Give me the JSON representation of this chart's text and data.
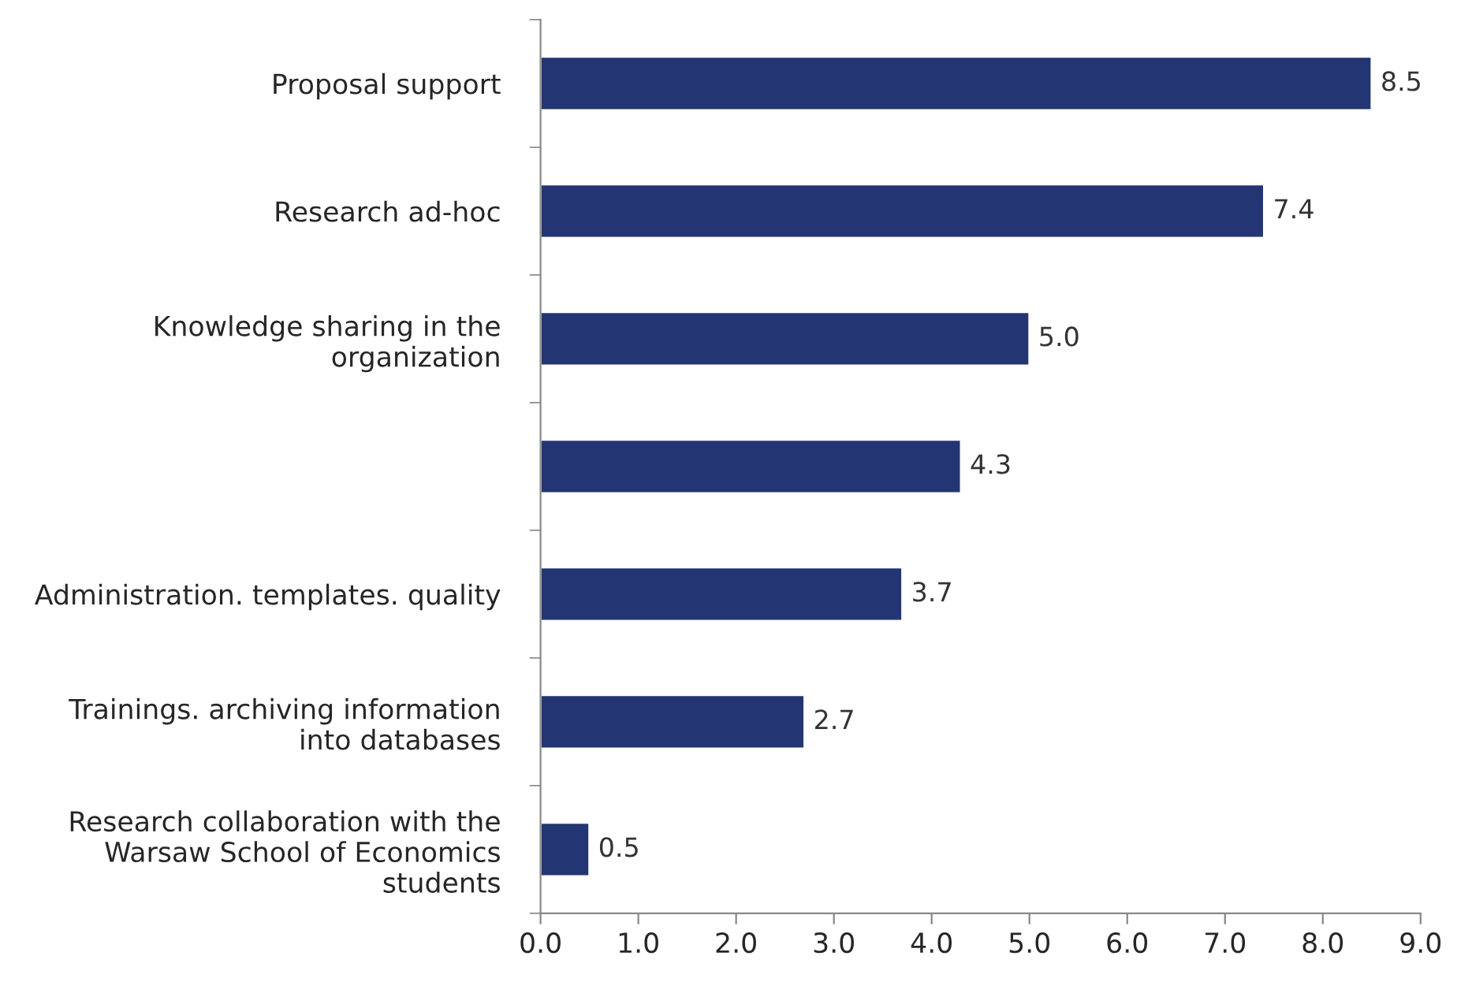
{
  "chart_data": {
    "type": "bar",
    "orientation": "horizontal",
    "categories": [
      "Proposal support",
      "Research ad-hoc",
      "Knowledge sharing in the\norganization",
      null,
      "Administration. templates. quality",
      "Trainings. archiving information\ninto databases",
      "Research collaboration with the\nWarsaw School of Economics\nstudents"
    ],
    "values": [
      8.5,
      7.4,
      5.0,
      4.3,
      3.7,
      2.7,
      0.5
    ],
    "color": "#233572",
    "xlim": [
      0,
      9
    ],
    "xticks": [
      {
        "value": 0,
        "label": "0.0"
      },
      {
        "value": 1,
        "label": "1.0"
      },
      {
        "value": 2,
        "label": "2.0"
      },
      {
        "value": 3,
        "label": "3.0"
      },
      {
        "value": 4,
        "label": "4.0"
      },
      {
        "value": 5,
        "label": "5.0"
      },
      {
        "value": 6,
        "label": "6.0"
      },
      {
        "value": 7,
        "label": "7.0"
      },
      {
        "value": 8,
        "label": "8.0"
      },
      {
        "value": 9,
        "label": "9.0"
      }
    ],
    "value_labels": [
      "8.5",
      "7.4",
      "5.0",
      "4.3",
      "3.7",
      "2.7",
      "0.5"
    ],
    "grid": false
  }
}
